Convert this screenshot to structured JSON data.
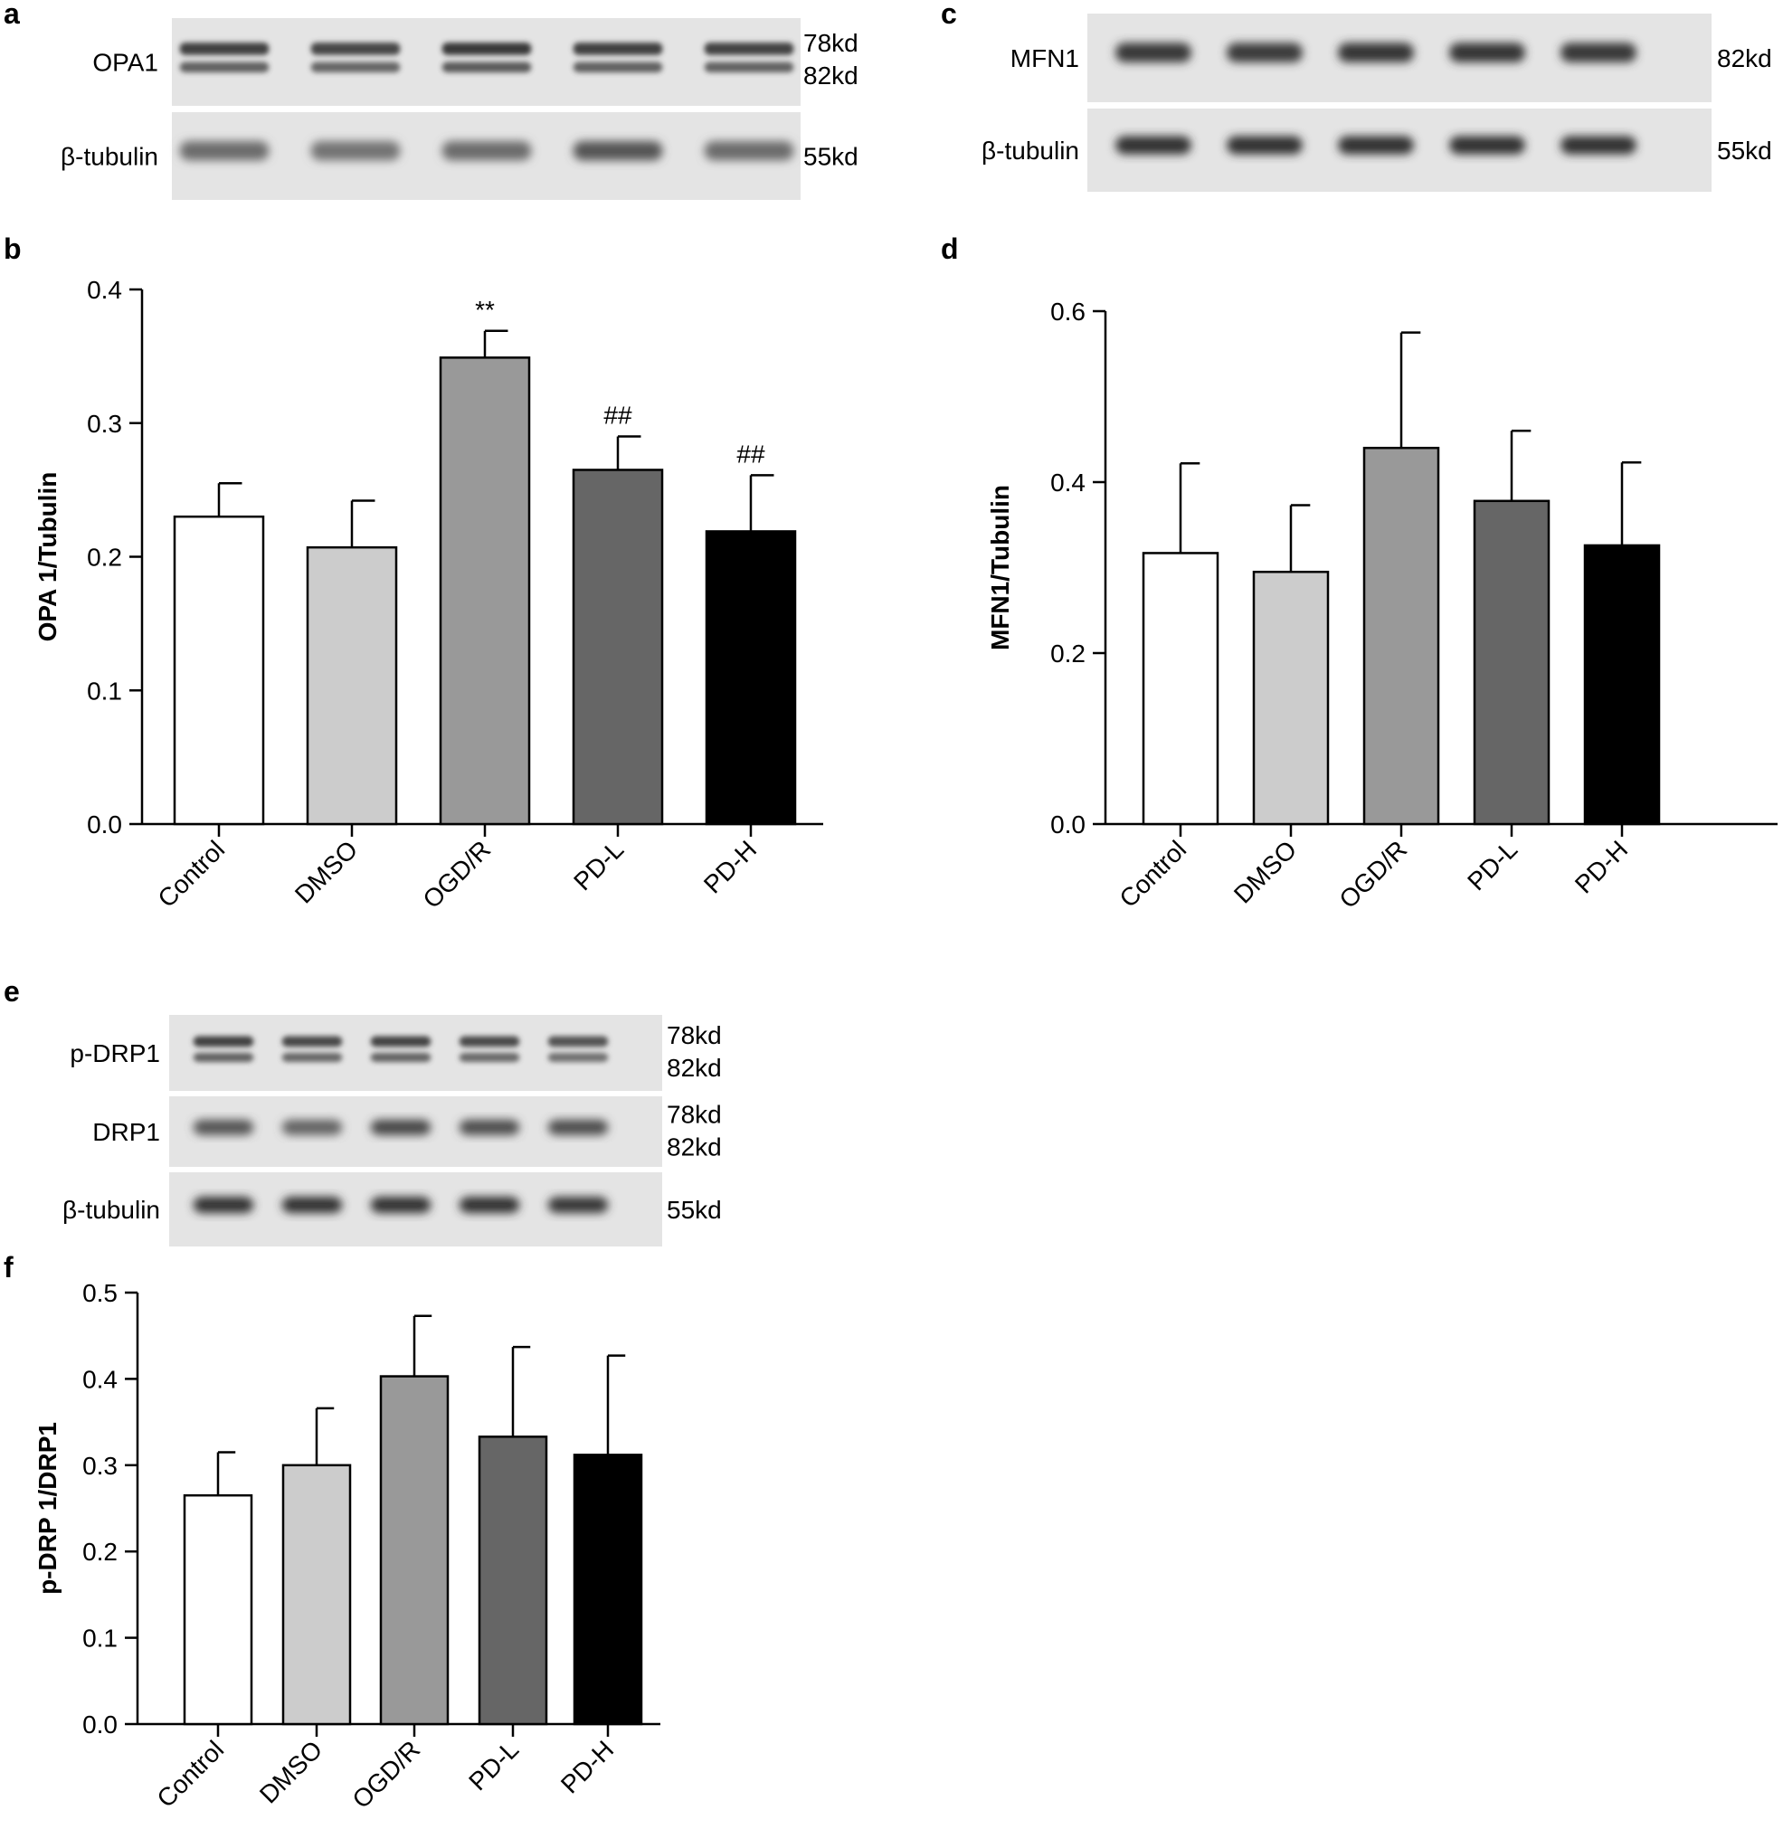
{
  "panel_letters": {
    "a": "a",
    "b": "b",
    "c": "c",
    "d": "d",
    "e": "e",
    "f": "f"
  },
  "blots": {
    "a": {
      "rows": [
        {
          "label": "OPA1",
          "kd": [
            "78kd",
            "82kd"
          ],
          "lanes": 5,
          "bands": 2,
          "intensity": [
            0.85,
            0.8,
            0.9,
            0.85,
            0.82
          ]
        },
        {
          "label": "β-tubulin",
          "kd": [
            "55kd"
          ],
          "lanes": 5,
          "bands": 1,
          "intensity": [
            0.55,
            0.5,
            0.55,
            0.7,
            0.55
          ]
        }
      ]
    },
    "c": {
      "rows": [
        {
          "label": "MFN1",
          "kd": [
            "82kd"
          ],
          "lanes": 5,
          "bands": 1,
          "intensity": [
            0.9,
            0.88,
            0.92,
            0.92,
            0.9
          ]
        },
        {
          "label": "β-tubulin",
          "kd": [
            "55kd"
          ],
          "lanes": 5,
          "bands": 1,
          "intensity": [
            0.95,
            0.93,
            0.93,
            0.93,
            0.93
          ]
        }
      ]
    },
    "e": {
      "rows": [
        {
          "label": "p-DRP1",
          "kd": [
            "78kd",
            "82kd"
          ],
          "lanes": 5,
          "bands": 2,
          "intensity": [
            0.85,
            0.8,
            0.82,
            0.78,
            0.72
          ]
        },
        {
          "label": "DRP1",
          "kd": [
            "78kd",
            "82kd"
          ],
          "lanes": 5,
          "bands": 1,
          "intensity": [
            0.7,
            0.6,
            0.8,
            0.75,
            0.75
          ]
        },
        {
          "label": "β-tubulin",
          "kd": [
            "55kd"
          ],
          "lanes": 5,
          "bands": 1,
          "intensity": [
            0.95,
            0.95,
            0.95,
            0.93,
            0.9
          ]
        }
      ]
    }
  },
  "chart_data": [
    {
      "panel": "b",
      "type": "bar",
      "categories": [
        "Control",
        "DMSO",
        "OGD/R",
        "PD-L",
        "PD-H"
      ],
      "values": [
        0.23,
        0.207,
        0.349,
        0.265,
        0.219
      ],
      "errors": [
        0.025,
        0.035,
        0.02,
        0.025,
        0.042
      ],
      "annotations": [
        "",
        "",
        "**",
        "##",
        "##"
      ],
      "ylabel": "OPA 1/Tubulin",
      "ylim": [
        0,
        0.4
      ],
      "yticks": [
        "0.0",
        "0.1",
        "0.2",
        "0.3",
        "0.4"
      ],
      "colors": [
        "#ffffff",
        "#cccccc",
        "#999999",
        "#666666",
        "#000000"
      ],
      "grid": false
    },
    {
      "panel": "d",
      "type": "bar",
      "categories": [
        "Control",
        "DMSO",
        "OGD/R",
        "PD-L",
        "PD-H"
      ],
      "values": [
        0.317,
        0.295,
        0.44,
        0.378,
        0.326
      ],
      "errors": [
        0.105,
        0.078,
        0.135,
        0.082,
        0.097
      ],
      "annotations": [
        "",
        "",
        "",
        "",
        ""
      ],
      "ylabel": "MFN1/Tubulin",
      "ylim": [
        0,
        0.6
      ],
      "yticks": [
        "0.0",
        "0.2",
        "0.4",
        "0.6"
      ],
      "colors": [
        "#ffffff",
        "#cccccc",
        "#999999",
        "#666666",
        "#000000"
      ],
      "grid": false
    },
    {
      "panel": "f",
      "type": "bar",
      "categories": [
        "Control",
        "DMSO",
        "OGD/R",
        "PD-L",
        "PD-H"
      ],
      "values": [
        0.265,
        0.3,
        0.403,
        0.333,
        0.312
      ],
      "errors": [
        0.05,
        0.066,
        0.07,
        0.104,
        0.115
      ],
      "annotations": [
        "",
        "",
        "",
        "",
        ""
      ],
      "ylabel": "p-DRP 1/DRP1",
      "ylim": [
        0,
        0.5
      ],
      "yticks": [
        "0.0",
        "0.1",
        "0.2",
        "0.3",
        "0.4",
        "0.5"
      ],
      "colors": [
        "#ffffff",
        "#cccccc",
        "#999999",
        "#666666",
        "#000000"
      ],
      "grid": false
    }
  ]
}
